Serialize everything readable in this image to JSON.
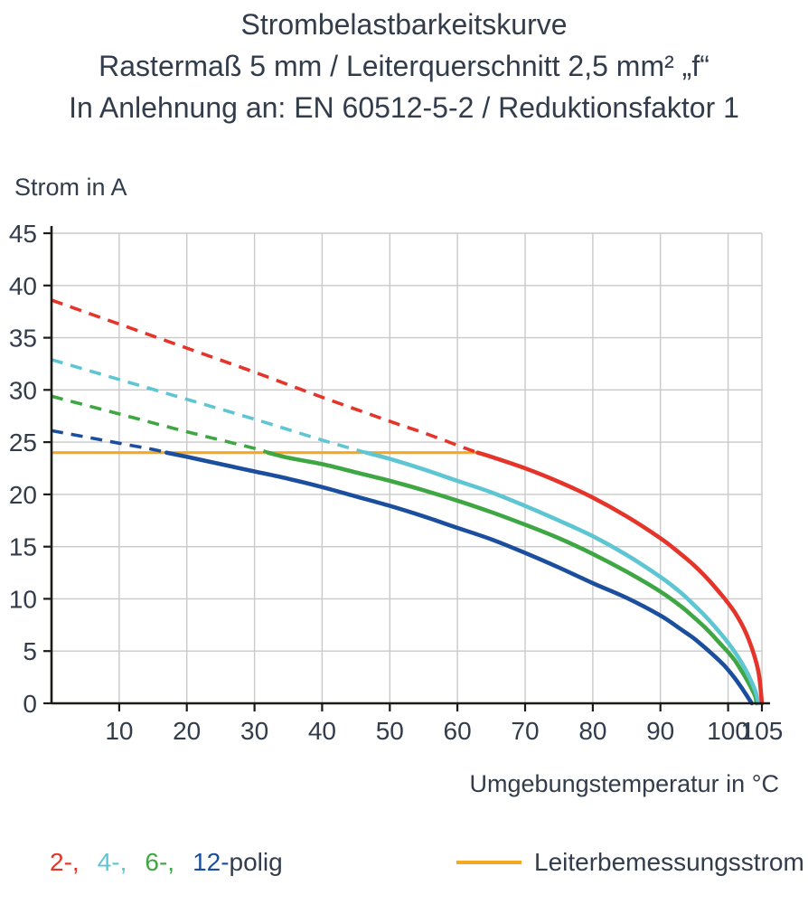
{
  "title": {
    "line1": "Strombelastbarkeitskurve",
    "line2": "Rastermaß 5 mm / Leiterquerschnitt 2,5 mm² „f“",
    "line3": "In Anlehnung an: EN 60512-5-2 / Reduktionsfaktor 1"
  },
  "axis": {
    "strom_label": "Strom in A",
    "temp_label": "Umgebungstemperatur in °C"
  },
  "chart_data": {
    "type": "line",
    "title": "Strombelastbarkeitskurve",
    "ylabel": "Strom in A",
    "xlabel": "Umgebungstemperatur in °C",
    "xlim": [
      0,
      107
    ],
    "ylim": [
      0,
      45
    ],
    "x_ticks": [
      10,
      20,
      30,
      40,
      50,
      60,
      70,
      80,
      90,
      100,
      105
    ],
    "y_ticks": [
      0,
      5,
      10,
      15,
      20,
      25,
      30,
      35,
      40,
      45
    ],
    "grid": true,
    "dash_above": 24,
    "colors": {
      "grid": "#c9c9c9",
      "axis": "#1b1b18",
      "text": "#323c4b"
    },
    "rated_current": {
      "label": "Leiterbemessungsstrom",
      "value": 24,
      "color": "#f7a823",
      "x_start": 0,
      "x_end": 63
    },
    "series": [
      {
        "name": "2-polig",
        "color": "#e5352b",
        "points": [
          [
            0,
            38.6
          ],
          [
            10,
            36.3
          ],
          [
            20,
            34.0
          ],
          [
            30,
            31.7
          ],
          [
            40,
            29.3
          ],
          [
            50,
            27.0
          ],
          [
            55,
            25.9
          ],
          [
            60,
            24.7
          ],
          [
            63,
            24.0
          ],
          [
            65,
            23.6
          ],
          [
            70,
            22.5
          ],
          [
            75,
            21.2
          ],
          [
            80,
            19.7
          ],
          [
            85,
            17.9
          ],
          [
            90,
            15.8
          ],
          [
            93,
            14.3
          ],
          [
            95,
            13.2
          ],
          [
            97,
            11.9
          ],
          [
            99,
            10.4
          ],
          [
            100,
            9.6
          ],
          [
            101,
            8.7
          ],
          [
            102,
            7.6
          ],
          [
            103,
            6.2
          ],
          [
            104,
            4.3
          ],
          [
            104.6,
            2.6
          ],
          [
            105,
            0
          ]
        ]
      },
      {
        "name": "4-polig",
        "color": "#5ec6d2",
        "points": [
          [
            0,
            32.9
          ],
          [
            10,
            31.0
          ],
          [
            20,
            29.1
          ],
          [
            30,
            27.2
          ],
          [
            40,
            25.2
          ],
          [
            46.5,
            24.0
          ],
          [
            50,
            23.4
          ],
          [
            55,
            22.4
          ],
          [
            60,
            21.3
          ],
          [
            65,
            20.2
          ],
          [
            70,
            18.9
          ],
          [
            75,
            17.5
          ],
          [
            80,
            16.0
          ],
          [
            85,
            14.2
          ],
          [
            90,
            12.1
          ],
          [
            93,
            10.6
          ],
          [
            95,
            9.4
          ],
          [
            97,
            8.1
          ],
          [
            99,
            6.6
          ],
          [
            100,
            5.8
          ],
          [
            101,
            4.9
          ],
          [
            102,
            3.9
          ],
          [
            103,
            2.7
          ],
          [
            104,
            1.2
          ],
          [
            104.5,
            0
          ]
        ]
      },
      {
        "name": "6-polig",
        "color": "#3ea743",
        "points": [
          [
            0,
            29.4
          ],
          [
            10,
            27.7
          ],
          [
            20,
            26.0
          ],
          [
            30,
            24.4
          ],
          [
            32,
            24.0
          ],
          [
            35,
            23.5
          ],
          [
            40,
            22.9
          ],
          [
            45,
            22.1
          ],
          [
            50,
            21.3
          ],
          [
            55,
            20.4
          ],
          [
            60,
            19.4
          ],
          [
            65,
            18.3
          ],
          [
            70,
            17.1
          ],
          [
            75,
            15.8
          ],
          [
            80,
            14.3
          ],
          [
            85,
            12.6
          ],
          [
            90,
            10.7
          ],
          [
            93,
            9.3
          ],
          [
            95,
            8.2
          ],
          [
            97,
            7.0
          ],
          [
            99,
            5.6
          ],
          [
            100,
            4.9
          ],
          [
            101,
            4.1
          ],
          [
            102,
            3.1
          ],
          [
            103,
            2.0
          ],
          [
            104,
            0.7
          ],
          [
            104.2,
            0
          ]
        ]
      },
      {
        "name": "12-polig",
        "color": "#1b4f9e",
        "points": [
          [
            0,
            26.1
          ],
          [
            5,
            25.5
          ],
          [
            10,
            24.9
          ],
          [
            15,
            24.3
          ],
          [
            17,
            24.0
          ],
          [
            20,
            23.6
          ],
          [
            25,
            22.9
          ],
          [
            30,
            22.2
          ],
          [
            35,
            21.5
          ],
          [
            40,
            20.7
          ],
          [
            45,
            19.8
          ],
          [
            50,
            18.9
          ],
          [
            55,
            17.9
          ],
          [
            60,
            16.8
          ],
          [
            65,
            15.7
          ],
          [
            70,
            14.4
          ],
          [
            75,
            13.0
          ],
          [
            80,
            11.5
          ],
          [
            85,
            10.1
          ],
          [
            90,
            8.4
          ],
          [
            93,
            7.1
          ],
          [
            95,
            6.2
          ],
          [
            97,
            5.1
          ],
          [
            99,
            3.9
          ],
          [
            100,
            3.2
          ],
          [
            101,
            2.4
          ],
          [
            102,
            1.5
          ],
          [
            103,
            0.5
          ],
          [
            103.5,
            0
          ]
        ]
      }
    ]
  },
  "legend": {
    "poles": [
      {
        "label": "2-,",
        "color": "#e5352b"
      },
      {
        "label": "4-,",
        "color": "#5ec6d2"
      },
      {
        "label": "6-,",
        "color": "#3ea743"
      },
      {
        "label": "12-",
        "color": "#1b4f9e"
      }
    ],
    "poles_suffix": "polig",
    "rated_label": "Leiterbemessungsstrom"
  }
}
